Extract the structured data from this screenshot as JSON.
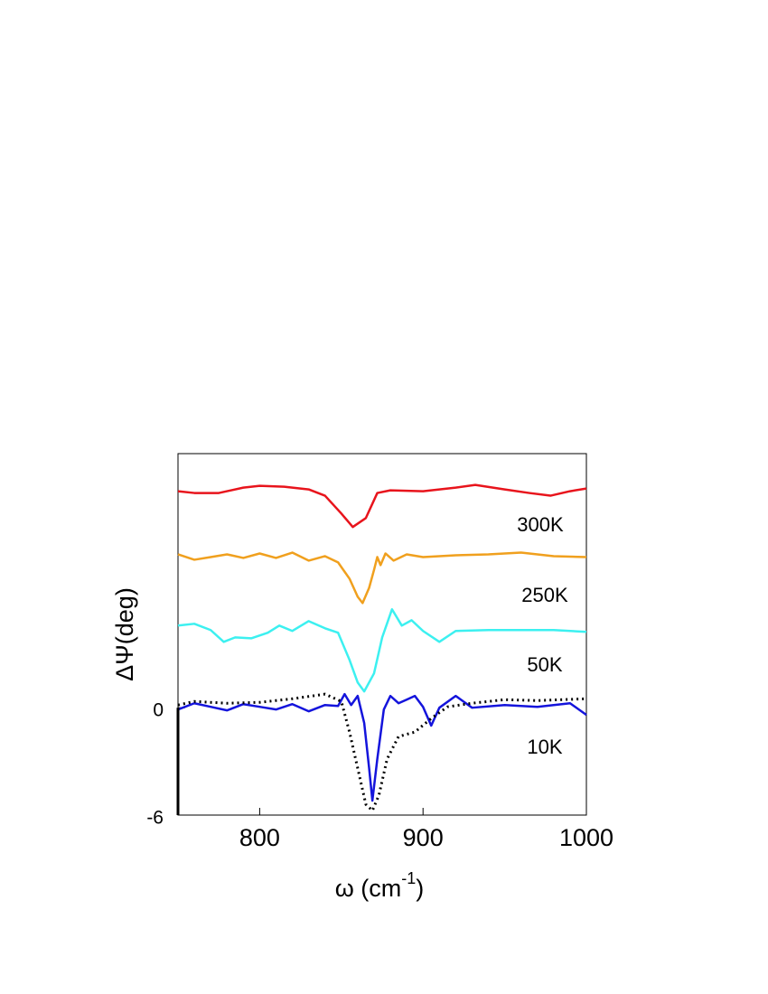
{
  "chart_data": {
    "type": "line",
    "ylabel": "ΔΨ(deg)",
    "xlabel": {
      "text": "ω (cm",
      "sup": "-1",
      "end": ")"
    },
    "xlim": [
      750,
      1000
    ],
    "xticks": [
      800,
      900,
      1000
    ],
    "ylim": [
      -6,
      14.2
    ],
    "yticks": [
      0,
      -6
    ],
    "series": [
      {
        "name": "300K",
        "color": "#e8141c",
        "x": [
          750,
          760,
          775,
          790,
          800,
          815,
          830,
          840,
          850,
          857,
          865,
          872,
          880,
          900,
          920,
          932,
          950,
          965,
          978,
          990,
          1000
        ],
        "values": [
          12.1,
          12.0,
          12.0,
          12.3,
          12.4,
          12.35,
          12.2,
          11.85,
          10.85,
          10.1,
          10.6,
          12.0,
          12.15,
          12.1,
          12.3,
          12.45,
          12.2,
          12.0,
          11.85,
          12.1,
          12.25
        ]
      },
      {
        "name": "250K",
        "color": "#f0a01e",
        "x": [
          750,
          760,
          770,
          780,
          790,
          800,
          810,
          820,
          830,
          840,
          848,
          855,
          860,
          863,
          867,
          870,
          872,
          874,
          877,
          882,
          890,
          900,
          920,
          940,
          960,
          980,
          1000
        ],
        "values": [
          8.57,
          8.27,
          8.42,
          8.57,
          8.37,
          8.62,
          8.37,
          8.67,
          8.22,
          8.47,
          8.12,
          7.21,
          6.2,
          5.85,
          6.7,
          7.7,
          8.42,
          7.97,
          8.62,
          8.22,
          8.57,
          8.42,
          8.52,
          8.57,
          8.67,
          8.47,
          8.42
        ]
      },
      {
        "name": "50K",
        "color": "#3cf0f0",
        "x": [
          750,
          760,
          770,
          778,
          785,
          795,
          805,
          812,
          820,
          830,
          840,
          848,
          855,
          860,
          864,
          870,
          875,
          881,
          887,
          893,
          900,
          910,
          920,
          940,
          960,
          980,
          1000
        ],
        "values": [
          4.59,
          4.69,
          4.34,
          3.68,
          3.93,
          3.88,
          4.19,
          4.59,
          4.29,
          4.84,
          4.44,
          4.19,
          2.67,
          1.41,
          0.91,
          1.92,
          3.93,
          5.5,
          4.59,
          4.89,
          4.29,
          3.68,
          4.29,
          4.34,
          4.34,
          4.34,
          4.24
        ]
      },
      {
        "name": "10K",
        "color": "#1414dc",
        "x": [
          750,
          760,
          770,
          780,
          790,
          800,
          810,
          820,
          830,
          840,
          848,
          852,
          856,
          860,
          864,
          867,
          869,
          872,
          876,
          880,
          885,
          890,
          895,
          900,
          905,
          910,
          920,
          930,
          950,
          970,
          990,
          1000
        ],
        "values": [
          -0.1,
          0.25,
          0.05,
          -0.15,
          0.2,
          0.05,
          -0.1,
          0.2,
          -0.2,
          0.15,
          0.1,
          0.76,
          0.15,
          0.66,
          -0.86,
          -3.38,
          -5.19,
          -2.87,
          -0.1,
          0.66,
          0.25,
          0.45,
          0.66,
          0.05,
          -1.0,
          0,
          0.66,
          0,
          0.15,
          0.05,
          0.25,
          -0.4
        ]
      },
      {
        "color": "#000000",
        "dash": true,
        "x": [
          750,
          760,
          780,
          800,
          820,
          840,
          850,
          855,
          860,
          865,
          869,
          873,
          878,
          885,
          895,
          905,
          915,
          930,
          950,
          970,
          1000
        ],
        "values": [
          0.15,
          0.35,
          0.25,
          0.3,
          0.5,
          0.76,
          0.35,
          -1.36,
          -3.38,
          -5.4,
          -5.75,
          -4.89,
          -2.87,
          -1.61,
          -1.36,
          -0.6,
          0.05,
          0.25,
          0.45,
          0.4,
          0.5
        ]
      }
    ]
  }
}
